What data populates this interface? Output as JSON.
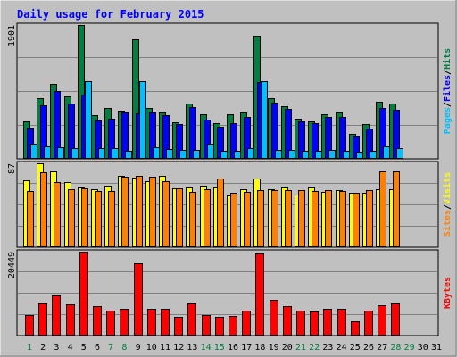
{
  "chart_data": {
    "type": "bar",
    "title": "Daily usage for February 2015",
    "days": [
      "1",
      "2",
      "3",
      "4",
      "5",
      "6",
      "7",
      "8",
      "9",
      "10",
      "11",
      "12",
      "13",
      "14",
      "15",
      "16",
      "17",
      "18",
      "19",
      "20",
      "21",
      "22",
      "23",
      "24",
      "25",
      "26",
      "27",
      "28",
      "29",
      "30",
      "31"
    ],
    "weekend_days": [
      "1",
      "7",
      "8",
      "14",
      "15",
      "21",
      "22",
      "28",
      "29"
    ],
    "colors": {
      "background": "#c0c0c0",
      "plot_bg": "#c0c0c0",
      "title": "#0000ff",
      "hits": "#008040",
      "files": "#0000ff",
      "pages": "#00c0ff",
      "visits": "#ffff00",
      "sites": "#ff8000",
      "kbytes": "#ff0000",
      "weekday_label": "#000000",
      "weekend_label": "#008040"
    },
    "panels": [
      {
        "name": "hits-files-pages",
        "ymax_label": "1901",
        "ylim": [
          0,
          1901
        ],
        "legend": [
          {
            "text": "Pages",
            "color": "#00c0ff"
          },
          {
            "text": "/",
            "color": "#000000"
          },
          {
            "text": "Files",
            "color": "#0000ff"
          },
          {
            "text": "/",
            "color": "#000000"
          },
          {
            "text": "Hits",
            "color": "#008040"
          }
        ],
        "series": [
          {
            "name": "Hits",
            "color": "#008040",
            "values": [
              520,
              860,
              1060,
              880,
              1901,
              610,
              710,
              670,
              1700,
              710,
              650,
              510,
              780,
              620,
              500,
              630,
              650,
              1750,
              860,
              740,
              560,
              520,
              620,
              650,
              340,
              480,
              800,
              780,
              null,
              null,
              null
            ]
          },
          {
            "name": "Files",
            "color": "#0000ff",
            "values": [
              430,
              750,
              960,
              780,
              900,
              540,
              560,
              650,
              640,
              650,
              610,
              490,
              730,
              550,
              450,
              500,
              590,
              1080,
              790,
              700,
              520,
              500,
              590,
              590,
              320,
              420,
              720,
              690,
              null,
              null,
              null
            ]
          },
          {
            "name": "Pages",
            "color": "#00c0ff",
            "values": [
              200,
              170,
              150,
              140,
              1100,
              140,
              140,
              100,
              1100,
              150,
              130,
              110,
              110,
              200,
              100,
              100,
              140,
              1100,
              120,
              110,
              100,
              100,
              110,
              100,
              90,
              100,
              160,
              140,
              null,
              null,
              null
            ]
          }
        ]
      },
      {
        "name": "visits-sites",
        "ymax_label": "87",
        "ylim": [
          0,
          87
        ],
        "legend": [
          {
            "text": "Sites",
            "color": "#ff8000"
          },
          {
            "text": "/",
            "color": "#000000"
          },
          {
            "text": "Visits",
            "color": "#ffff00"
          }
        ],
        "series": [
          {
            "name": "Visits",
            "color": "#ffff00",
            "values": [
              69,
              87,
              79,
              67,
              62,
              60,
              64,
              74,
              72,
              68,
              74,
              61,
              62,
              64,
              62,
              53,
              60,
              71,
              60,
              62,
              54,
              62,
              57,
              59,
              56,
              56,
              60,
              60,
              null,
              null,
              null
            ]
          },
          {
            "name": "Sites",
            "color": "#ff8000",
            "values": [
              58,
              78,
              67,
              60,
              61,
              58,
              58,
              73,
              74,
              73,
              68,
              61,
              57,
              60,
              71,
              56,
              57,
              59,
              59,
              59,
              59,
              58,
              59,
              58,
              56,
              59,
              79,
              79,
              null,
              null,
              null
            ]
          }
        ]
      },
      {
        "name": "kbytes",
        "ymax_label": "20449",
        "ylim": [
          0,
          20449
        ],
        "legend": [
          {
            "text": "KBytes",
            "color": "#ff0000"
          }
        ],
        "series": [
          {
            "name": "KBytes",
            "color": "#ff0000",
            "values": [
              4800,
              7600,
              9700,
              7500,
              20449,
              7000,
              6000,
              6300,
              17700,
              6400,
              6400,
              4500,
              7600,
              4900,
              4300,
              4700,
              6000,
              20100,
              8600,
              7000,
              5900,
              5700,
              6400,
              6300,
              3300,
              5900,
              7200,
              7600,
              null,
              null,
              null
            ]
          }
        ]
      }
    ]
  }
}
